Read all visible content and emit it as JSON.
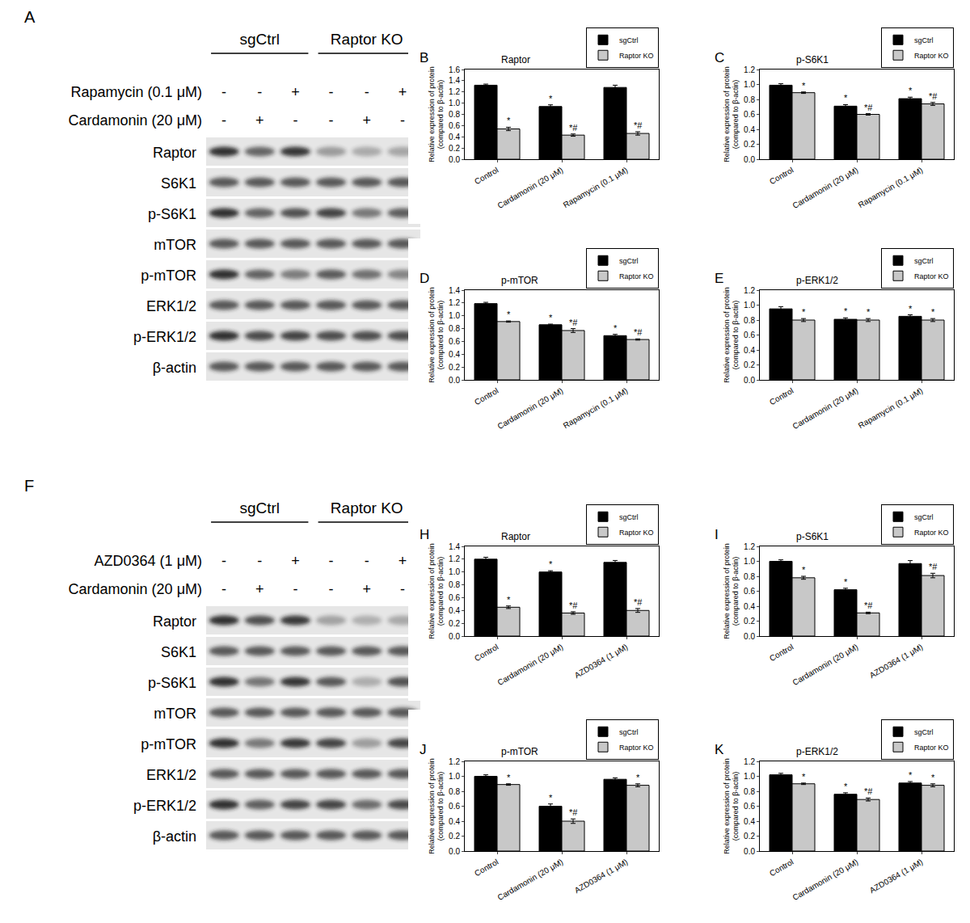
{
  "blots": [
    {
      "panel": "A",
      "groups": [
        "sgCtrl",
        "Raptor KO"
      ],
      "treatments": [
        {
          "label": "Rapamycin (0.1 μM)",
          "lanes": [
            "-",
            "-",
            "+",
            "-",
            "-",
            "+"
          ]
        },
        {
          "label": "Cardamonin (20 μM)",
          "lanes": [
            "-",
            "+",
            "-",
            "-",
            "+",
            "-"
          ]
        }
      ],
      "rows": [
        "Raptor",
        "S6K1",
        "p-S6K1",
        "mTOR",
        "p-mTOR",
        "ERK1/2",
        "p-ERK1/2",
        "β-actin"
      ]
    },
    {
      "panel": "F",
      "groups": [
        "sgCtrl",
        "Raptor KO"
      ],
      "treatments": [
        {
          "label": "AZD0364 (1 μM)",
          "lanes": [
            "-",
            "-",
            "+",
            "-",
            "-",
            "+"
          ]
        },
        {
          "label": "Cardamonin (20 μM)",
          "lanes": [
            "-",
            "+",
            "-",
            "-",
            "+",
            "-"
          ]
        }
      ],
      "rows": [
        "Raptor",
        "S6K1",
        "p-S6K1",
        "mTOR",
        "p-mTOR",
        "ERK1/2",
        "p-ERK1/2",
        "β-actin"
      ]
    }
  ],
  "chart_data": [
    {
      "panel": "B",
      "type": "bar",
      "title": "Raptor",
      "y_label": [
        "Relative expression of protein",
        "(compared to β-actin)"
      ],
      "categories": [
        "Control",
        "Cardamonin (20 μM)",
        "Rapamycin (0.1 μM)"
      ],
      "ylim": [
        0,
        1.6
      ],
      "yticks": [
        {
          "value": 0,
          "label": "0.0"
        },
        0.2,
        0.4,
        0.6,
        0.8,
        {
          "value": 1,
          "label": "1.0"
        },
        1.2,
        1.4,
        1.6
      ],
      "grid": false,
      "legend": "top right",
      "series": [
        {
          "name": "sgCtrl",
          "color": "#000000",
          "values": [
            1.32,
            0.94,
            1.28
          ],
          "errors": [
            0.02,
            0.03,
            0.04
          ],
          "marks": [
            null,
            "*",
            null
          ]
        },
        {
          "name": "Raptor KO",
          "color": "#c8c8c8",
          "values": [
            0.54,
            0.43,
            0.46
          ],
          "errors": [
            0.03,
            0.02,
            0.03
          ],
          "marks": [
            "*",
            "*#",
            "*#"
          ]
        }
      ]
    },
    {
      "panel": "C",
      "type": "bar",
      "title": "p-S6K1",
      "y_label": [
        "Relative expression of protein",
        "(compared to β-actin)"
      ],
      "categories": [
        "Control",
        "Cardamonin (20 μM)",
        "Rapamycin (0.1 μM)"
      ],
      "ylim": [
        0,
        1.2
      ],
      "yticks": [
        {
          "value": 0,
          "label": "0.0"
        },
        0.2,
        0.4,
        0.6,
        0.8,
        {
          "value": 1,
          "label": "1.0"
        },
        1.2
      ],
      "grid": false,
      "legend": "top right",
      "series": [
        {
          "name": "sgCtrl",
          "color": "#000000",
          "values": [
            0.99,
            0.71,
            0.81
          ],
          "errors": [
            0.02,
            0.02,
            0.02
          ],
          "marks": [
            null,
            "*",
            "*"
          ]
        },
        {
          "name": "Raptor KO",
          "color": "#c8c8c8",
          "values": [
            0.89,
            0.6,
            0.74
          ],
          "errors": [
            0.01,
            0.01,
            0.02
          ],
          "marks": [
            "*",
            "*#",
            "*#"
          ]
        }
      ]
    },
    {
      "panel": "D",
      "type": "bar",
      "title": "p-mTOR",
      "y_label": [
        "Relative expression of protein",
        "(compared to β-actin)"
      ],
      "categories": [
        "Control",
        "Cardamonin (20 μM)",
        "Rapamycin (0.1 μM)"
      ],
      "ylim": [
        0,
        1.4
      ],
      "yticks": [
        {
          "value": 0,
          "label": "0.0"
        },
        0.2,
        0.4,
        0.6,
        0.8,
        {
          "value": 1,
          "label": "1.0"
        },
        1.2,
        1.4
      ],
      "grid": false,
      "legend": "top right",
      "series": [
        {
          "name": "sgCtrl",
          "color": "#000000",
          "values": [
            1.19,
            0.86,
            0.69
          ],
          "errors": [
            0.02,
            0.01,
            0.02
          ],
          "marks": [
            null,
            "*",
            "*"
          ]
        },
        {
          "name": "Raptor KO",
          "color": "#c8c8c8",
          "values": [
            0.91,
            0.77,
            0.63
          ],
          "errors": [
            0.01,
            0.03,
            0.01
          ],
          "marks": [
            "*",
            "*#",
            "*#"
          ]
        }
      ]
    },
    {
      "panel": "E",
      "type": "bar",
      "title": "p-ERK1/2",
      "y_label": [
        "Relative expression of protein",
        "(compared to β-actin)"
      ],
      "categories": [
        "Control",
        "Cardamonin (20 μM)",
        "Rapamycin (0.1 μM)"
      ],
      "ylim": [
        0,
        1.2
      ],
      "yticks": [
        {
          "value": 0,
          "label": "0.0"
        },
        0.2,
        0.4,
        0.6,
        0.8,
        {
          "value": 1,
          "label": "1.0"
        },
        1.2
      ],
      "grid": false,
      "legend": "top right",
      "series": [
        {
          "name": "sgCtrl",
          "color": "#000000",
          "values": [
            0.95,
            0.81,
            0.85
          ],
          "errors": [
            0.03,
            0.02,
            0.02
          ],
          "marks": [
            null,
            "*",
            "*"
          ]
        },
        {
          "name": "Raptor KO",
          "color": "#c8c8c8",
          "values": [
            0.8,
            0.8,
            0.8
          ],
          "errors": [
            0.02,
            0.02,
            0.02
          ],
          "marks": [
            "*",
            "*",
            "*"
          ]
        }
      ]
    },
    {
      "panel": "H",
      "type": "bar",
      "title": "Raptor",
      "y_label": [
        "Relative expression of protein",
        "(compared to β-actin)"
      ],
      "categories": [
        "Control",
        "Cardamonin (20 μM)",
        "AZD0364 (1 μM)"
      ],
      "ylim": [
        0,
        1.4
      ],
      "yticks": [
        {
          "value": 0,
          "label": "0.0"
        },
        0.2,
        0.4,
        0.6,
        0.8,
        {
          "value": 1,
          "label": "1.0"
        },
        1.2,
        1.4
      ],
      "grid": false,
      "legend": "top right",
      "series": [
        {
          "name": "sgCtrl",
          "color": "#000000",
          "values": [
            1.2,
            1.0,
            1.15
          ],
          "errors": [
            0.03,
            0.02,
            0.03
          ],
          "marks": [
            null,
            "*",
            null
          ]
        },
        {
          "name": "Raptor KO",
          "color": "#c8c8c8",
          "values": [
            0.45,
            0.36,
            0.4
          ],
          "errors": [
            0.02,
            0.02,
            0.03
          ],
          "marks": [
            "*",
            "*#",
            "*#"
          ]
        }
      ]
    },
    {
      "panel": "I",
      "type": "bar",
      "title": "p-S6K1",
      "y_label": [
        "Relative expression of protein",
        "(compared to β-actin)"
      ],
      "categories": [
        "Control",
        "Cardamonin (20 μM)",
        "AZD0364 (1 μM)"
      ],
      "ylim": [
        0,
        1.2
      ],
      "yticks": [
        {
          "value": 0,
          "label": "0.0"
        },
        0.2,
        0.4,
        0.6,
        0.8,
        {
          "value": 1,
          "label": "1.0"
        },
        1.2
      ],
      "grid": false,
      "legend": "top right",
      "series": [
        {
          "name": "sgCtrl",
          "color": "#000000",
          "values": [
            1.0,
            0.62,
            0.97
          ],
          "errors": [
            0.02,
            0.02,
            0.04
          ],
          "marks": [
            null,
            "*",
            null
          ]
        },
        {
          "name": "Raptor KO",
          "color": "#c8c8c8",
          "values": [
            0.78,
            0.31,
            0.81
          ],
          "errors": [
            0.02,
            0.01,
            0.03
          ],
          "marks": [
            "*",
            "*#",
            "*#"
          ]
        }
      ]
    },
    {
      "panel": "J",
      "type": "bar",
      "title": "p-mTOR",
      "y_label": [
        "Relative expression of protein",
        "(compared to β-actin)"
      ],
      "categories": [
        "Control",
        "Cardamonin (20 μM)",
        "AZD0364 (1 μM)"
      ],
      "ylim": [
        0,
        1.2
      ],
      "yticks": [
        {
          "value": 0,
          "label": "0.0"
        },
        0.2,
        0.4,
        0.6,
        0.8,
        {
          "value": 1,
          "label": "1.0"
        },
        1.2
      ],
      "grid": false,
      "legend": "top right",
      "series": [
        {
          "name": "sgCtrl",
          "color": "#000000",
          "values": [
            1.0,
            0.6,
            0.96
          ],
          "errors": [
            0.02,
            0.03,
            0.02
          ],
          "marks": [
            null,
            "*",
            null
          ]
        },
        {
          "name": "Raptor KO",
          "color": "#c8c8c8",
          "values": [
            0.89,
            0.4,
            0.88
          ],
          "errors": [
            0.01,
            0.03,
            0.02
          ],
          "marks": [
            "*",
            "*#",
            "*"
          ]
        }
      ]
    },
    {
      "panel": "K",
      "type": "bar",
      "title": "p-ERK1/2",
      "y_label": [
        "Relative expression of protein",
        "(compared to β-actin)"
      ],
      "categories": [
        "Control",
        "Cardamonin (20 μM)",
        "AZD0364 (1 μM)"
      ],
      "ylim": [
        0,
        1.2
      ],
      "yticks": [
        {
          "value": 0,
          "label": "0.0"
        },
        0.2,
        0.4,
        0.6,
        0.8,
        {
          "value": 1,
          "label": "1.0"
        },
        1.2
      ],
      "grid": false,
      "legend": "top right",
      "series": [
        {
          "name": "sgCtrl",
          "color": "#000000",
          "values": [
            1.02,
            0.76,
            0.91
          ],
          "errors": [
            0.02,
            0.02,
            0.02
          ],
          "marks": [
            null,
            "*",
            "*"
          ]
        },
        {
          "name": "Raptor KO",
          "color": "#c8c8c8",
          "values": [
            0.9,
            0.69,
            0.88
          ],
          "errors": [
            0.01,
            0.02,
            0.02
          ],
          "marks": [
            "*",
            "*#",
            "*"
          ]
        }
      ]
    }
  ]
}
